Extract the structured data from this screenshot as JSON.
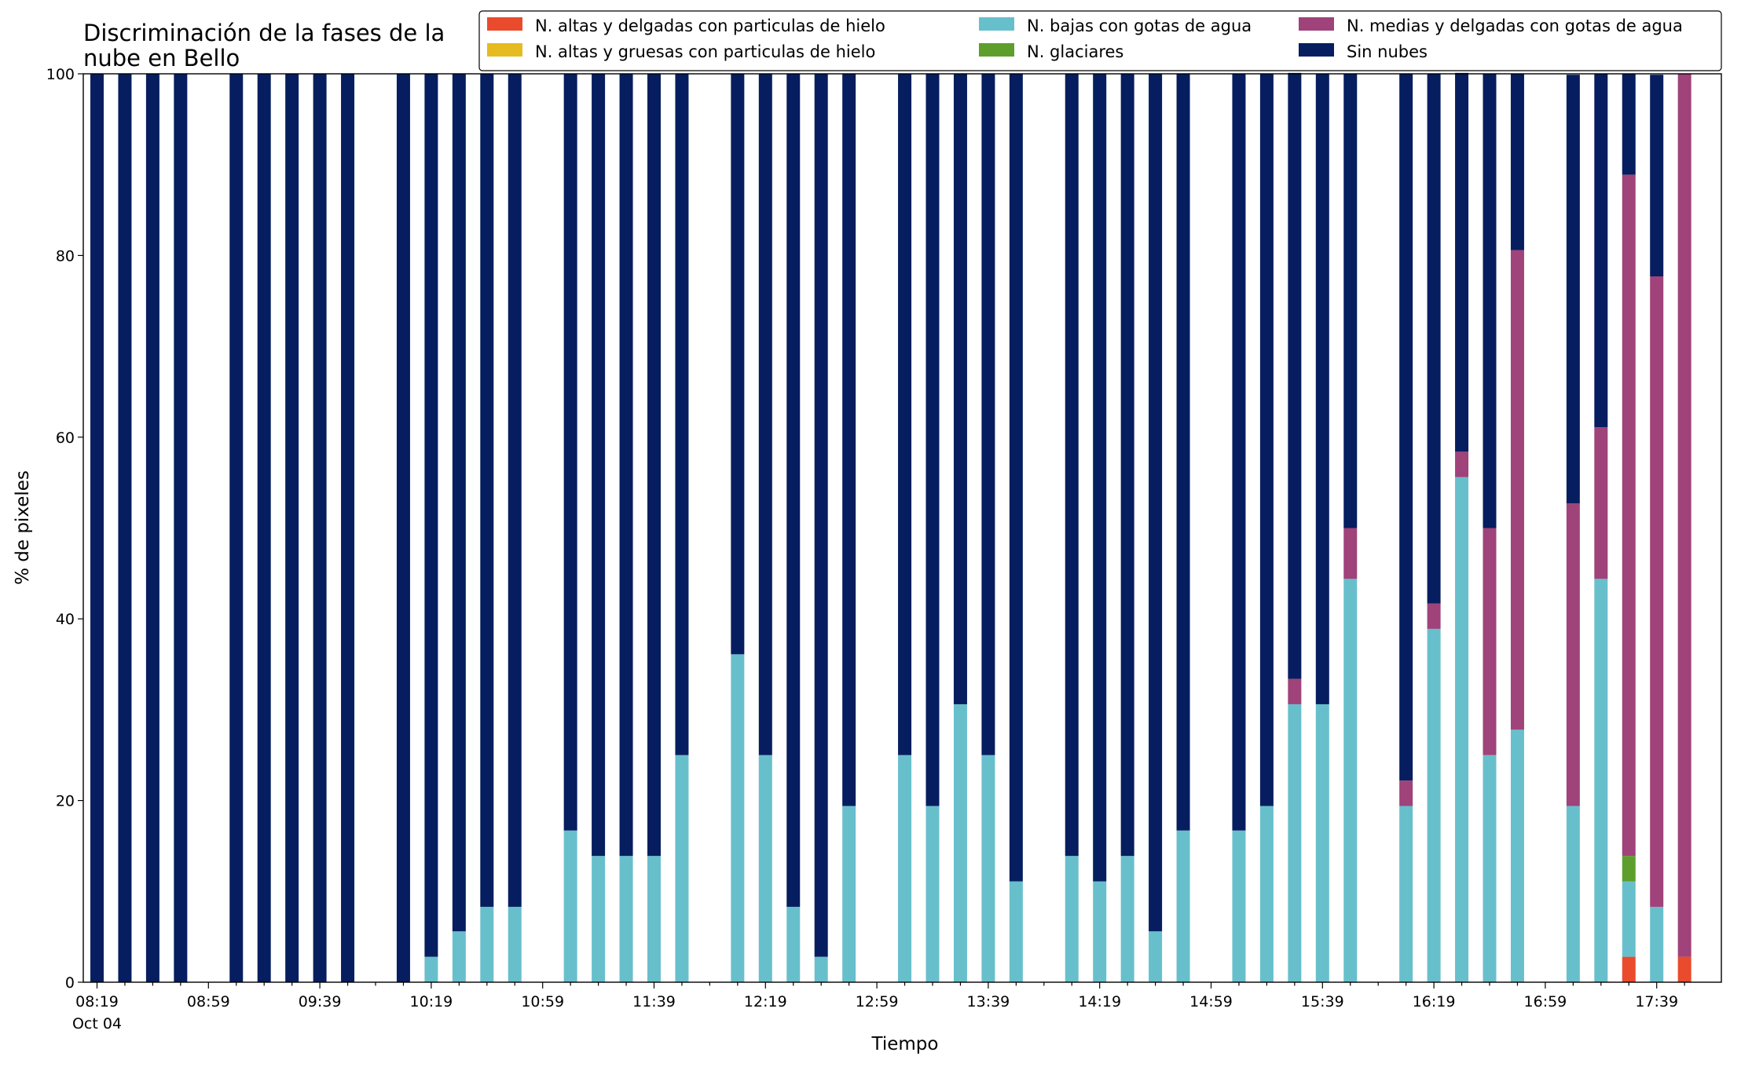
{
  "chart_data": {
    "type": "bar",
    "stacked": true,
    "title": "Discriminación de la fases de la nube en Bello",
    "title_lines": [
      "Discriminación de la fases de la",
      "nube en Bello"
    ],
    "xlabel": "Tiempo",
    "ylabel": "% de pixeles",
    "ylim": [
      0,
      100
    ],
    "yticks": [
      0,
      20,
      40,
      60,
      80,
      100
    ],
    "x_start": "08:19",
    "x_step_minutes": 10,
    "x_count": 58,
    "xtick_labels": [
      "08:19",
      "08:59",
      "09:39",
      "10:19",
      "10:59",
      "11:39",
      "12:19",
      "12:59",
      "13:39",
      "14:19",
      "14:59",
      "15:39",
      "16:19",
      "16:59",
      "17:39"
    ],
    "xtick_sublabel": "Oct 04",
    "grid": false,
    "legend_position": "top",
    "colors": {
      "alta_delgada": "#e94b2c",
      "alta_gruesa": "#e6bb1f",
      "baja_agua": "#68bfcc",
      "glaciares": "#5e9e2c",
      "media_agua": "#9f437a",
      "sin_nubes": "#061e5f"
    },
    "legend": [
      {
        "key": "alta_delgada",
        "label": "N. altas y delgadas con particulas de hielo"
      },
      {
        "key": "baja_agua",
        "label": "N. bajas con gotas de agua"
      },
      {
        "key": "media_agua",
        "label": "N. medias y delgadas con gotas de agua"
      },
      {
        "key": "alta_gruesa",
        "label": "N. altas y gruesas con particulas de hielo"
      },
      {
        "key": "glaciares",
        "label": "N. glaciares"
      },
      {
        "key": "sin_nubes",
        "label": "Sin nubes"
      }
    ],
    "stack_order": [
      "alta_delgada",
      "alta_gruesa",
      "baja_agua",
      "glaciares",
      "media_agua",
      "sin_nubes"
    ],
    "categories": [
      "08:19",
      "08:29",
      "08:39",
      "08:49",
      "08:59",
      "09:09",
      "09:19",
      "09:29",
      "09:39",
      "09:49",
      "09:59",
      "10:09",
      "10:19",
      "10:29",
      "10:39",
      "10:49",
      "10:59",
      "11:09",
      "11:19",
      "11:29",
      "11:39",
      "11:49",
      "11:59",
      "12:09",
      "12:19",
      "12:29",
      "12:39",
      "12:49",
      "12:59",
      "13:09",
      "13:19",
      "13:29",
      "13:39",
      "13:49",
      "13:59",
      "14:09",
      "14:19",
      "14:29",
      "14:39",
      "14:49",
      "14:59",
      "15:09",
      "15:19",
      "15:29",
      "15:39",
      "15:49",
      "15:59",
      "16:09",
      "16:19",
      "16:29",
      "16:39",
      "16:49",
      "16:59",
      "17:09",
      "17:19",
      "17:29",
      "17:39",
      "17:49"
    ],
    "series": [
      {
        "key": "alta_delgada",
        "name": "N. altas y delgadas con particulas de hielo",
        "values": [
          0,
          0,
          0,
          0,
          null,
          0,
          0,
          0,
          0,
          0,
          null,
          0,
          0,
          0,
          0,
          0,
          null,
          0,
          0,
          0,
          0,
          0,
          null,
          0,
          0,
          0,
          0,
          0,
          null,
          0,
          0,
          0,
          0,
          0,
          null,
          0,
          0,
          0,
          0,
          0,
          null,
          0,
          0,
          0,
          0,
          0,
          null,
          0,
          0,
          0,
          0,
          0,
          null,
          0,
          0,
          2.8,
          0,
          2.8
        ]
      },
      {
        "key": "alta_gruesa",
        "name": "N. altas y gruesas con particulas de hielo",
        "values": [
          0,
          0,
          0,
          0,
          null,
          0,
          0,
          0,
          0,
          0,
          null,
          0,
          0,
          0,
          0,
          0,
          null,
          0,
          0,
          0,
          0,
          0,
          null,
          0,
          0,
          0,
          0,
          0,
          null,
          0,
          0,
          0,
          0,
          0,
          null,
          0,
          0,
          0,
          0,
          0,
          null,
          0,
          0,
          0,
          0,
          0,
          null,
          0,
          0,
          0,
          0,
          0,
          null,
          0,
          0,
          0,
          0,
          0
        ]
      },
      {
        "key": "baja_agua",
        "name": "N. bajas con gotas de agua",
        "values": [
          0,
          0,
          0,
          0,
          null,
          0,
          0,
          0,
          0,
          0,
          null,
          0,
          2.8,
          5.6,
          8.3,
          8.3,
          null,
          16.7,
          13.9,
          13.9,
          13.9,
          25.0,
          null,
          36.1,
          25.0,
          8.3,
          2.8,
          19.4,
          null,
          25.0,
          19.4,
          30.6,
          25.0,
          11.1,
          null,
          13.9,
          11.1,
          13.9,
          5.6,
          16.7,
          null,
          16.7,
          19.4,
          30.6,
          30.6,
          44.4,
          null,
          19.4,
          38.9,
          55.6,
          25.0,
          27.8,
          null,
          19.4,
          44.4,
          8.3,
          8.3,
          0
        ]
      },
      {
        "key": "glaciares",
        "name": "N. glaciares",
        "values": [
          0,
          0,
          0,
          0,
          null,
          0,
          0,
          0,
          0,
          0,
          null,
          0,
          0,
          0,
          0,
          0,
          null,
          0,
          0,
          0,
          0,
          0,
          null,
          0,
          0,
          0,
          0,
          0,
          null,
          0,
          0,
          0,
          0,
          0,
          null,
          0,
          0,
          0,
          0,
          0,
          null,
          0,
          0,
          0,
          0,
          0,
          null,
          0,
          0,
          0,
          0,
          0,
          null,
          0,
          0,
          2.8,
          0,
          0
        ]
      },
      {
        "key": "media_agua",
        "name": "N. medias y delgadas con gotas de agua",
        "values": [
          0,
          0,
          0,
          0,
          null,
          0,
          0,
          0,
          0,
          0,
          null,
          0,
          0,
          0,
          0,
          0,
          null,
          0,
          0,
          0,
          0,
          0,
          null,
          0,
          0,
          0,
          0,
          0,
          null,
          0,
          0,
          0,
          0,
          0,
          null,
          0,
          0,
          0,
          0,
          0,
          null,
          0,
          0,
          2.8,
          0,
          5.6,
          null,
          2.8,
          2.8,
          2.8,
          25.0,
          52.8,
          null,
          33.3,
          16.7,
          75.0,
          69.4,
          97.2
        ]
      },
      {
        "key": "sin_nubes",
        "name": "Sin nubes",
        "values": [
          100,
          100,
          100,
          100,
          null,
          100,
          100,
          100,
          100,
          100,
          null,
          100,
          97.2,
          94.4,
          91.7,
          91.7,
          null,
          83.3,
          86.1,
          86.1,
          86.1,
          75.0,
          null,
          63.9,
          75.0,
          91.7,
          97.2,
          80.6,
          null,
          75.0,
          80.6,
          69.4,
          75.0,
          88.9,
          null,
          86.1,
          88.9,
          86.1,
          94.4,
          83.3,
          null,
          83.3,
          80.6,
          66.7,
          69.4,
          50.0,
          null,
          77.8,
          58.3,
          41.7,
          50.0,
          19.4,
          null,
          47.2,
          38.9,
          11.1,
          22.2,
          0
        ]
      }
    ]
  }
}
